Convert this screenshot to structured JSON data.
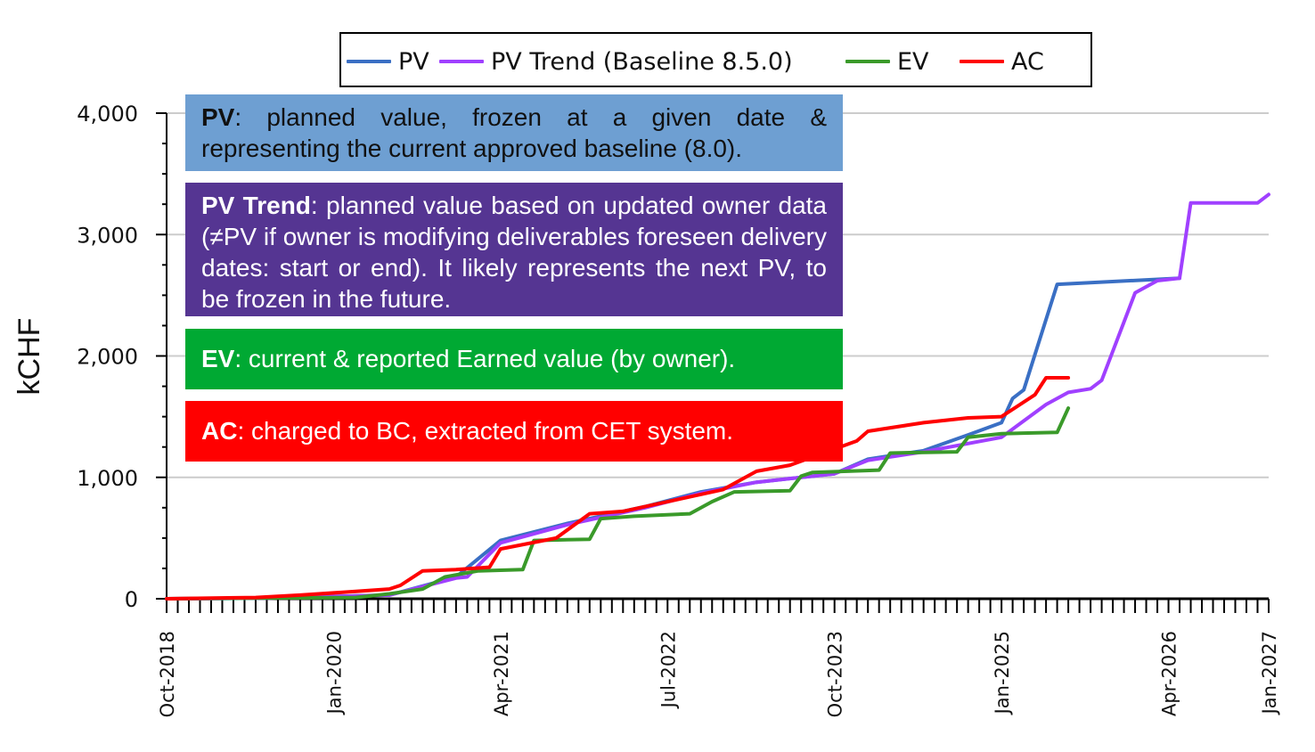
{
  "chart_data": {
    "type": "line",
    "ylabel": "kCHF",
    "xlabel": "",
    "ylim": [
      0,
      4000
    ],
    "yticks": [
      "0",
      "1,000",
      "2,000",
      "3,000",
      "4,000"
    ],
    "xticks": [
      "Oct-2018",
      "Jan-2020",
      "Apr-2021",
      "Jul-2022",
      "Oct-2023",
      "Jan-2025",
      "Apr-2026",
      "Jan-2027"
    ],
    "xrange": [
      "2018-10",
      "2027-01"
    ],
    "grid": true,
    "legend_position": "top",
    "series": [
      {
        "name": "PV",
        "color": "#3a6fc4",
        "points": [
          [
            "2018-10",
            0
          ],
          [
            "2019-07",
            5
          ],
          [
            "2020-06",
            30
          ],
          [
            "2020-12",
            180
          ],
          [
            "2021-04",
            480
          ],
          [
            "2021-10",
            620
          ],
          [
            "2022-05",
            760
          ],
          [
            "2022-10",
            880
          ],
          [
            "2023-03",
            960
          ],
          [
            "2023-10",
            1030
          ],
          [
            "2024-01",
            1150
          ],
          [
            "2024-06",
            1220
          ],
          [
            "2024-10",
            1350
          ],
          [
            "2025-01",
            1450
          ],
          [
            "2025-02",
            1650
          ],
          [
            "2025-03",
            1720
          ],
          [
            "2025-06",
            2590
          ],
          [
            "2026-05",
            2640
          ]
        ]
      },
      {
        "name": "PV Trend (Baseline 8.5.0)",
        "color": "#a040ff",
        "points": [
          [
            "2018-10",
            0
          ],
          [
            "2019-07",
            5
          ],
          [
            "2020-06",
            30
          ],
          [
            "2020-12",
            170
          ],
          [
            "2021-01",
            180
          ],
          [
            "2021-04",
            460
          ],
          [
            "2021-10",
            610
          ],
          [
            "2022-05",
            750
          ],
          [
            "2022-10",
            870
          ],
          [
            "2023-03",
            960
          ],
          [
            "2023-10",
            1030
          ],
          [
            "2024-01",
            1140
          ],
          [
            "2024-06",
            1210
          ],
          [
            "2025-01",
            1330
          ],
          [
            "2025-05",
            1600
          ],
          [
            "2025-07",
            1700
          ],
          [
            "2025-09",
            1730
          ],
          [
            "2025-10",
            1800
          ],
          [
            "2026-01",
            2520
          ],
          [
            "2026-03",
            2620
          ],
          [
            "2026-05",
            2640
          ],
          [
            "2026-06",
            3260
          ],
          [
            "2026-12",
            3260
          ],
          [
            "2027-01",
            3330
          ]
        ]
      },
      {
        "name": "EV",
        "color": "#3a9a2a",
        "points": [
          [
            "2018-10",
            0
          ],
          [
            "2020-03",
            10
          ],
          [
            "2020-06",
            40
          ],
          [
            "2020-09",
            80
          ],
          [
            "2020-11",
            180
          ],
          [
            "2021-02",
            230
          ],
          [
            "2021-06",
            240
          ],
          [
            "2021-07",
            480
          ],
          [
            "2021-12",
            490
          ],
          [
            "2022-01",
            660
          ],
          [
            "2022-04",
            680
          ],
          [
            "2022-09",
            700
          ],
          [
            "2022-11",
            800
          ],
          [
            "2023-01",
            880
          ],
          [
            "2023-06",
            890
          ],
          [
            "2023-07",
            1010
          ],
          [
            "2023-08",
            1040
          ],
          [
            "2024-02",
            1060
          ],
          [
            "2024-03",
            1200
          ],
          [
            "2024-09",
            1210
          ],
          [
            "2024-10",
            1330
          ],
          [
            "2025-01",
            1360
          ],
          [
            "2025-06",
            1370
          ],
          [
            "2025-07",
            1570
          ]
        ]
      },
      {
        "name": "AC",
        "color": "#ff0000",
        "points": [
          [
            "2018-10",
            0
          ],
          [
            "2019-06",
            10
          ],
          [
            "2019-10",
            30
          ],
          [
            "2020-03",
            60
          ],
          [
            "2020-06",
            80
          ],
          [
            "2020-07",
            110
          ],
          [
            "2020-09",
            230
          ],
          [
            "2020-12",
            240
          ],
          [
            "2021-03",
            260
          ],
          [
            "2021-04",
            410
          ],
          [
            "2021-09",
            500
          ],
          [
            "2021-12",
            700
          ],
          [
            "2022-03",
            720
          ],
          [
            "2022-08",
            820
          ],
          [
            "2022-12",
            900
          ],
          [
            "2023-03",
            1050
          ],
          [
            "2023-06",
            1100
          ],
          [
            "2023-09",
            1200
          ],
          [
            "2023-12",
            1300
          ],
          [
            "2024-01",
            1380
          ],
          [
            "2024-06",
            1450
          ],
          [
            "2024-10",
            1490
          ],
          [
            "2025-01",
            1500
          ],
          [
            "2025-04",
            1680
          ],
          [
            "2025-05",
            1820
          ],
          [
            "2025-07",
            1820
          ]
        ]
      }
    ]
  },
  "notes": {
    "pv": {
      "term": "PV",
      "text": ": planned value, frozen at a given date & representing the current approved baseline (8.0)."
    },
    "trend": {
      "term": "PV Trend",
      "text": ": planned value based on updated owner data (≠PV if owner is modifying deliverables foreseen delivery dates: start or end). It likely represents the next PV, to be frozen in the future."
    },
    "ev": {
      "term": "EV",
      "text": ": current & reported Earned value (by owner)."
    },
    "ac": {
      "term": "AC",
      "text": ": charged to BC, extracted from CET system."
    }
  }
}
